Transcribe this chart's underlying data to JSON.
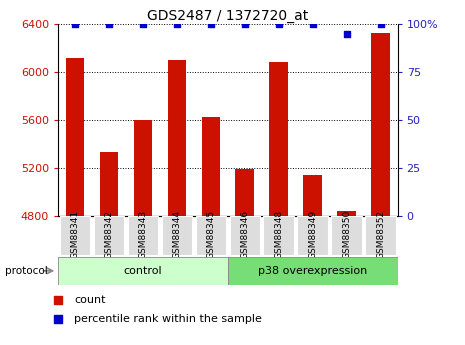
{
  "title": "GDS2487 / 1372720_at",
  "samples": [
    "GSM88341",
    "GSM88342",
    "GSM88343",
    "GSM88344",
    "GSM88345",
    "GSM88346",
    "GSM88348",
    "GSM88349",
    "GSM88350",
    "GSM88352"
  ],
  "counts": [
    6120,
    5330,
    5600,
    6100,
    5620,
    5190,
    6080,
    5140,
    4840,
    6330
  ],
  "percentile_ranks": [
    100,
    100,
    100,
    100,
    100,
    100,
    100,
    100,
    95,
    100
  ],
  "ylim_left": [
    4800,
    6400
  ],
  "ylim_right": [
    0,
    100
  ],
  "yticks_left": [
    4800,
    5200,
    5600,
    6000,
    6400
  ],
  "yticks_right": [
    0,
    25,
    50,
    75,
    100
  ],
  "bar_color": "#cc1100",
  "dot_color": "#0000cc",
  "control_samples": 5,
  "control_label": "control",
  "overexpression_label": "p38 overexpression",
  "protocol_label": "protocol",
  "legend_count": "count",
  "legend_percentile": "percentile rank within the sample",
  "control_bg": "#ccffcc",
  "overexpression_bg": "#77dd77",
  "tick_bg": "#dddddd",
  "right_axis_color": "#2222bb"
}
